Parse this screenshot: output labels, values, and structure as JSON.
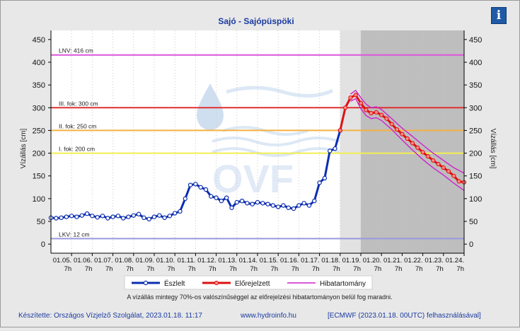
{
  "title": "Sajó - Sajópüspöki",
  "ylabel": "Vízállás [cm]",
  "ylabel_right": "Vízállás [cm]",
  "info_icon": "info-icon",
  "info_glyph": "i",
  "note": "A vízállás mintegy 70%-os valószínűséggel az előrejelzési hibatartományon belül fog maradni.",
  "footer": {
    "author": "Készítette: Országos Vízjelző Szolgálat, 2023.01.18. 11:17",
    "url": "www.hydroinfo.hu",
    "model": "[ECMWF (2023.01.18. 00UTC) felhasználásával]"
  },
  "legend": [
    {
      "label": "Észlelt",
      "color": "#0b2db0"
    },
    {
      "label": "Előrejelzett",
      "color": "#dd1111"
    },
    {
      "label": "Hibatartomány",
      "color": "#cc22cc"
    }
  ],
  "chart_data": {
    "type": "line",
    "title": "Sajó - Sajópüspöki",
    "ylabel": "Vízállás [cm]",
    "ylim": [
      -20,
      470
    ],
    "yticks": [
      0,
      50,
      100,
      150,
      200,
      250,
      300,
      350,
      400,
      450
    ],
    "xlim": [
      4.0,
      24.0
    ],
    "xticks": [
      {
        "x": 5,
        "label": "01.05.",
        "hour": "7h"
      },
      {
        "x": 6,
        "label": "01.06.",
        "hour": "7h"
      },
      {
        "x": 7,
        "label": "01.07.",
        "hour": "7h"
      },
      {
        "x": 8,
        "label": "01.08.",
        "hour": "7h"
      },
      {
        "x": 9,
        "label": "01.09.",
        "hour": "7h"
      },
      {
        "x": 10,
        "label": "01.10.",
        "hour": "7h"
      },
      {
        "x": 11,
        "label": "01.11.",
        "hour": "7h"
      },
      {
        "x": 12,
        "label": "01.12.",
        "hour": "7h"
      },
      {
        "x": 13,
        "label": "01.13.",
        "hour": "7h"
      },
      {
        "x": 14,
        "label": "01.14.",
        "hour": "7h"
      },
      {
        "x": 15,
        "label": "01.15.",
        "hour": "7h"
      },
      {
        "x": 16,
        "label": "01.16.",
        "hour": "7h"
      },
      {
        "x": 17,
        "label": "01.17.",
        "hour": "7h"
      },
      {
        "x": 18,
        "label": "01.18.",
        "hour": "7h"
      },
      {
        "x": 19,
        "label": "01.19.",
        "hour": "7h"
      },
      {
        "x": 20,
        "label": "01.20.",
        "hour": "7h"
      },
      {
        "x": 21,
        "label": "01.21.",
        "hour": "7h"
      },
      {
        "x": 22,
        "label": "01.22.",
        "hour": "7h"
      },
      {
        "x": 23,
        "label": "01.23.",
        "hour": "7h"
      },
      {
        "x": 24,
        "label": "01.24.",
        "hour": "7h"
      }
    ],
    "x_note": "x = day of January 2023 at 07h",
    "forecast_shading": [
      {
        "from": 18.0,
        "to": 19.0,
        "color": "#e2e2e2"
      },
      {
        "from": 19.0,
        "to": 24.0,
        "color": "#bebebe"
      }
    ],
    "levels": [
      {
        "label": "LNV: 416 cm",
        "value": 416,
        "color": "#dd55dd"
      },
      {
        "label": "III. fok: 300 cm",
        "value": 300,
        "color": "#e03030"
      },
      {
        "label": "II. fok: 250 cm",
        "value": 250,
        "color": "#f5b040"
      },
      {
        "label": "I. fok: 200 cm",
        "value": 200,
        "color": "#f2ee50"
      },
      {
        "label": "LKV: 12 cm",
        "value": 12,
        "color": "#9999dd"
      }
    ],
    "series": [
      {
        "name": "Észlelt",
        "color": "#0b2db0",
        "points": [
          [
            4.0,
            58
          ],
          [
            4.25,
            57
          ],
          [
            4.5,
            58
          ],
          [
            4.75,
            60
          ],
          [
            5.0,
            62
          ],
          [
            5.25,
            60
          ],
          [
            5.5,
            63
          ],
          [
            5.75,
            67
          ],
          [
            6.0,
            62
          ],
          [
            6.25,
            59
          ],
          [
            6.5,
            62
          ],
          [
            6.75,
            57
          ],
          [
            7.0,
            60
          ],
          [
            7.25,
            62
          ],
          [
            7.5,
            57
          ],
          [
            7.75,
            60
          ],
          [
            8.0,
            63
          ],
          [
            8.25,
            66
          ],
          [
            8.5,
            58
          ],
          [
            8.75,
            55
          ],
          [
            9.0,
            60
          ],
          [
            9.25,
            63
          ],
          [
            9.5,
            58
          ],
          [
            9.75,
            62
          ],
          [
            10.0,
            68
          ],
          [
            10.25,
            72
          ],
          [
            10.5,
            100
          ],
          [
            10.75,
            130
          ],
          [
            11.0,
            132
          ],
          [
            11.25,
            125
          ],
          [
            11.5,
            120
          ],
          [
            11.75,
            105
          ],
          [
            12.0,
            102
          ],
          [
            12.25,
            95
          ],
          [
            12.5,
            102
          ],
          [
            12.75,
            80
          ],
          [
            13.0,
            92
          ],
          [
            13.25,
            95
          ],
          [
            13.5,
            90
          ],
          [
            13.75,
            88
          ],
          [
            14.0,
            92
          ],
          [
            14.25,
            90
          ],
          [
            14.5,
            88
          ],
          [
            14.75,
            85
          ],
          [
            15.0,
            82
          ],
          [
            15.25,
            85
          ],
          [
            15.5,
            80
          ],
          [
            15.75,
            78
          ],
          [
            16.0,
            85
          ],
          [
            16.25,
            90
          ],
          [
            16.5,
            85
          ],
          [
            16.75,
            95
          ],
          [
            17.0,
            135
          ],
          [
            17.25,
            145
          ],
          [
            17.5,
            205
          ],
          [
            17.75,
            210
          ],
          [
            18.0,
            250
          ]
        ]
      },
      {
        "name": "Előrejelzett",
        "color": "#dd1111",
        "points": [
          [
            18.0,
            250
          ],
          [
            18.25,
            300
          ],
          [
            18.5,
            322
          ],
          [
            18.75,
            328
          ],
          [
            19.0,
            310
          ],
          [
            19.25,
            295
          ],
          [
            19.5,
            288
          ],
          [
            19.75,
            290
          ],
          [
            20.0,
            284
          ],
          [
            20.25,
            276
          ],
          [
            20.5,
            264
          ],
          [
            20.75,
            252
          ],
          [
            21.0,
            242
          ],
          [
            21.25,
            232
          ],
          [
            21.5,
            222
          ],
          [
            21.75,
            212
          ],
          [
            22.0,
            202
          ],
          [
            22.25,
            193
          ],
          [
            22.5,
            184
          ],
          [
            22.75,
            176
          ],
          [
            23.0,
            168
          ],
          [
            23.25,
            160
          ],
          [
            23.5,
            150
          ],
          [
            23.75,
            138
          ],
          [
            24.0,
            136
          ]
        ]
      },
      {
        "name": "Hibatartomány",
        "color": "#cc22cc",
        "upper": [
          [
            18.5,
            330
          ],
          [
            18.75,
            338
          ],
          [
            19.0,
            322
          ],
          [
            19.25,
            308
          ],
          [
            19.5,
            300
          ],
          [
            19.75,
            302
          ],
          [
            20.0,
            296
          ],
          [
            20.5,
            276
          ],
          [
            21.0,
            255
          ],
          [
            21.5,
            237
          ],
          [
            22.0,
            218
          ],
          [
            22.5,
            200
          ],
          [
            23.0,
            184
          ],
          [
            23.5,
            168
          ],
          [
            24.0,
            156
          ]
        ],
        "lower": [
          [
            18.5,
            314
          ],
          [
            18.75,
            320
          ],
          [
            19.0,
            298
          ],
          [
            19.25,
            283
          ],
          [
            19.5,
            276
          ],
          [
            19.75,
            278
          ],
          [
            20.0,
            272
          ],
          [
            20.5,
            252
          ],
          [
            21.0,
            229
          ],
          [
            21.5,
            207
          ],
          [
            22.0,
            186
          ],
          [
            22.5,
            168
          ],
          [
            23.0,
            152
          ],
          [
            23.5,
            134
          ],
          [
            24.0,
            118
          ]
        ]
      }
    ]
  }
}
